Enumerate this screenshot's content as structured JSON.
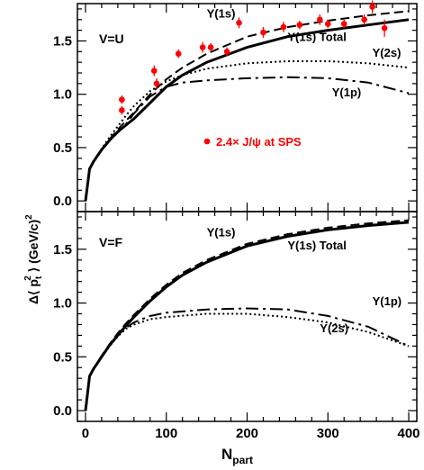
{
  "chart_data": [
    {
      "type": "line",
      "panel_label": "V=U",
      "xlim": [
        -10,
        410
      ],
      "ylim": [
        -0.1,
        1.85
      ],
      "yticks": [
        0.0,
        0.5,
        1.0,
        1.5
      ],
      "yticklabels": [
        "0.0",
        "0.5",
        "1.0",
        "1.5"
      ],
      "series": [
        {
          "name": "Υ(1s) Total",
          "style": "solid",
          "x": [
            0,
            5,
            10,
            20,
            30,
            40,
            50,
            60,
            80,
            100,
            120,
            150,
            200,
            250,
            300,
            350,
            400
          ],
          "y": [
            0.0,
            0.3,
            0.37,
            0.48,
            0.57,
            0.65,
            0.71,
            0.77,
            0.92,
            1.07,
            1.18,
            1.3,
            1.44,
            1.54,
            1.6,
            1.65,
            1.7
          ]
        },
        {
          "name": "Υ(1s)",
          "style": "dashed",
          "x": [
            0,
            5,
            10,
            20,
            30,
            40,
            50,
            60,
            80,
            100,
            120,
            150,
            200,
            250,
            300,
            350,
            400
          ],
          "y": [
            0.0,
            0.3,
            0.37,
            0.48,
            0.58,
            0.67,
            0.75,
            0.83,
            1.0,
            1.14,
            1.25,
            1.38,
            1.54,
            1.63,
            1.69,
            1.74,
            1.78
          ]
        },
        {
          "name": "Υ(2s)",
          "style": "dotted",
          "x": [
            0,
            5,
            10,
            20,
            30,
            40,
            50,
            60,
            80,
            100,
            120,
            150,
            200,
            250,
            300,
            350,
            400
          ],
          "y": [
            0.0,
            0.3,
            0.37,
            0.49,
            0.6,
            0.7,
            0.8,
            0.89,
            1.03,
            1.12,
            1.18,
            1.24,
            1.29,
            1.31,
            1.31,
            1.29,
            1.25
          ]
        },
        {
          "name": "Υ(1p)",
          "style": "dashdot",
          "x": [
            0,
            5,
            10,
            20,
            30,
            40,
            50,
            60,
            80,
            100,
            120,
            150,
            200,
            250,
            300,
            350,
            400
          ],
          "y": [
            0.0,
            0.3,
            0.37,
            0.48,
            0.57,
            0.64,
            0.72,
            0.82,
            0.98,
            1.07,
            1.11,
            1.13,
            1.15,
            1.16,
            1.15,
            1.11,
            1.01
          ]
        },
        {
          "name": "2.4× J/ψ at SPS",
          "style": "points",
          "color": "#ff0000",
          "x": [
            45,
            45,
            85,
            88,
            115,
            145,
            155,
            175,
            190,
            220,
            245,
            265,
            290,
            300,
            320,
            345,
            355,
            370
          ],
          "y": [
            0.95,
            0.85,
            1.22,
            1.1,
            1.38,
            1.44,
            1.44,
            1.4,
            1.67,
            1.58,
            1.63,
            1.65,
            1.7,
            1.66,
            1.66,
            1.7,
            1.82,
            1.62
          ],
          "err": [
            0.04,
            0.04,
            0.05,
            0.05,
            0.04,
            0.05,
            0.04,
            0.04,
            0.05,
            0.05,
            0.05,
            0.04,
            0.05,
            0.04,
            0.04,
            0.05,
            0.06,
            0.08
          ]
        }
      ],
      "annotations": [
        {
          "text": "Υ(1s)",
          "x": 150,
          "y": 1.72
        },
        {
          "text": "Υ(1s) Total",
          "x": 250,
          "y": 1.5
        },
        {
          "text": "Υ(2s)",
          "x": 355,
          "y": 1.35
        },
        {
          "text": "Υ(1p)",
          "x": 305,
          "y": 0.98
        }
      ],
      "legend": {
        "text": "2.4× J/ψ at SPS",
        "placement": "middle-center"
      }
    },
    {
      "type": "line",
      "panel_label": "V=F",
      "xlim": [
        -10,
        410
      ],
      "ylim": [
        -0.1,
        1.85
      ],
      "yticks": [
        0.0,
        0.5,
        1.0,
        1.5
      ],
      "yticklabels": [
        "0.0",
        "0.5",
        "1.0",
        "1.5"
      ],
      "xticks": [
        0,
        100,
        200,
        300,
        400
      ],
      "xticklabels": [
        "0",
        "100",
        "200",
        "300",
        "400"
      ],
      "xlabel": "N",
      "xlabel_sub": "part",
      "series": [
        {
          "name": "Υ(1s) Total",
          "style": "solid",
          "x": [
            0,
            5,
            10,
            20,
            30,
            40,
            50,
            60,
            80,
            100,
            120,
            150,
            200,
            250,
            300,
            350,
            400
          ],
          "y": [
            0.0,
            0.32,
            0.39,
            0.5,
            0.61,
            0.7,
            0.79,
            0.87,
            1.02,
            1.15,
            1.26,
            1.38,
            1.53,
            1.62,
            1.68,
            1.72,
            1.75
          ]
        },
        {
          "name": "Υ(1s)",
          "style": "dashed",
          "x": [
            0,
            5,
            10,
            20,
            30,
            40,
            50,
            60,
            80,
            100,
            120,
            150,
            200,
            250,
            300,
            350,
            400
          ],
          "y": [
            0.0,
            0.32,
            0.39,
            0.51,
            0.62,
            0.72,
            0.81,
            0.89,
            1.04,
            1.17,
            1.28,
            1.4,
            1.55,
            1.64,
            1.7,
            1.74,
            1.77
          ]
        },
        {
          "name": "Υ(2s)",
          "style": "dotted",
          "x": [
            0,
            5,
            10,
            20,
            30,
            40,
            50,
            60,
            80,
            100,
            150,
            200,
            250,
            300,
            350,
            400
          ],
          "y": [
            0.0,
            0.32,
            0.39,
            0.5,
            0.6,
            0.69,
            0.76,
            0.8,
            0.85,
            0.87,
            0.9,
            0.9,
            0.87,
            0.82,
            0.73,
            0.6
          ]
        },
        {
          "name": "Υ(1p)",
          "style": "dashdot",
          "x": [
            0,
            5,
            10,
            20,
            30,
            40,
            50,
            60,
            80,
            100,
            150,
            200,
            250,
            300,
            350,
            400
          ],
          "y": [
            0.0,
            0.32,
            0.39,
            0.5,
            0.61,
            0.7,
            0.77,
            0.82,
            0.88,
            0.91,
            0.94,
            0.95,
            0.94,
            0.88,
            0.78,
            0.6
          ]
        }
      ],
      "annotations": [
        {
          "text": "Υ(1s)",
          "x": 150,
          "y": 1.62
        },
        {
          "text": "Υ(1s) Total",
          "x": 250,
          "y": 1.5
        },
        {
          "text": "Υ(1p)",
          "x": 355,
          "y": 0.98
        },
        {
          "text": "Υ(2s)",
          "x": 290,
          "y": 0.73
        }
      ]
    }
  ],
  "ylabel": {
    "prefix": "Δ⟨ p",
    "sub": "t",
    "sup": "2",
    "suffix": " ⟩   (GeV/c)",
    "suffix_sup": "2"
  }
}
